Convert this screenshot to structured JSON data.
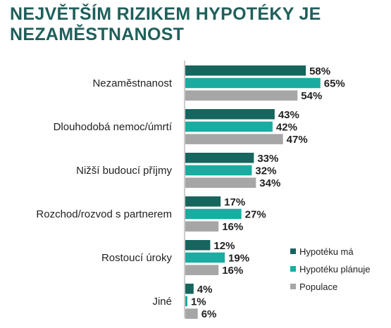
{
  "title": "NEJVĚTŠÍM RIZIKEM HYPOTÉKY JE NEZAMĚSTNANOST",
  "colors": {
    "title": "#1f5f5b",
    "text": "#222222",
    "axis": "#9a9a9a"
  },
  "chart_data": {
    "type": "bar",
    "orientation": "horizontal",
    "title": "NEJVĚTŠÍM RIZIKEM HYPOTÉKY JE NEZAMĚSTNANOST",
    "xlabel": "",
    "ylabel": "",
    "xlim": [
      0,
      100
    ],
    "grid": false,
    "legend_position": "bottom-right",
    "value_suffix": "%",
    "categories": [
      "Nezaměstnanost",
      "Dlouhodobá nemoc/úmrtí",
      "Nižší budoucí příjmy",
      "Rozchod/rozvod s partnerem",
      "Rostoucí úroky",
      "Jiné"
    ],
    "series": [
      {
        "name": "Hypotéku má",
        "color": "#17655f",
        "values": [
          58,
          43,
          33,
          17,
          12,
          4
        ]
      },
      {
        "name": "Hypotéku plánuje",
        "color": "#1aaca1",
        "values": [
          65,
          42,
          32,
          27,
          19,
          1
        ]
      },
      {
        "name": "Populace",
        "color": "#a6a6a6",
        "values": [
          54,
          47,
          34,
          16,
          16,
          6
        ]
      }
    ]
  }
}
